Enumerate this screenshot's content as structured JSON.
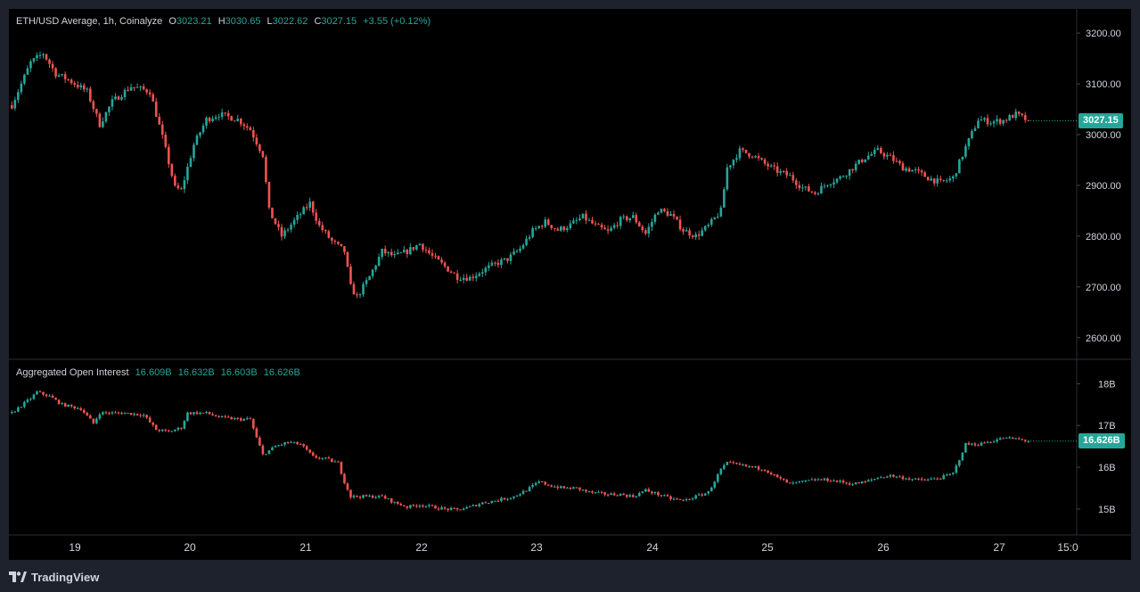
{
  "legend_main": {
    "title": "ETH/USD Average, 1h, Coinalyze",
    "o_label": "O",
    "o": "3023.21",
    "h_label": "H",
    "h": "3030.65",
    "l_label": "L",
    "l": "3022.62",
    "c_label": "C",
    "c": "3027.15",
    "change": "+3.55 (+0.12%)"
  },
  "legend_oi": {
    "title": "Aggregated Open Interest",
    "v1": "16.609B",
    "v2": "16.632B",
    "v3": "16.603B",
    "v4": "16.626B"
  },
  "price_tag": "3027.15",
  "oi_tag": "16.626B",
  "brand": "TradingView",
  "colors": {
    "up": "#26a69a",
    "down": "#ef5350",
    "background": "#000000",
    "frame": "#1e222d"
  },
  "chart_data": [
    {
      "type": "candlestick",
      "name": "ETH/USD Average, 1h, Coinalyze",
      "x_ticks": [
        "19",
        "20",
        "21",
        "22",
        "23",
        "24",
        "25",
        "26",
        "27",
        "15:0"
      ],
      "y_ticks": [
        "3200.00",
        "3100.00",
        "3000.00",
        "2900.00",
        "2800.00",
        "2700.00",
        "2600.00"
      ],
      "ylim": [
        2575,
        3230
      ],
      "last_close": 3027.15,
      "close_path": [
        [
          0,
          3058
        ],
        [
          6,
          3142
        ],
        [
          10,
          3160
        ],
        [
          14,
          3120
        ],
        [
          18,
          3108
        ],
        [
          24,
          3085
        ],
        [
          28,
          3020
        ],
        [
          32,
          3065
        ],
        [
          38,
          3095
        ],
        [
          44,
          3085
        ],
        [
          48,
          2995
        ],
        [
          52,
          2895
        ],
        [
          54,
          2890
        ],
        [
          58,
          2980
        ],
        [
          62,
          3030
        ],
        [
          66,
          3040
        ],
        [
          72,
          3030
        ],
        [
          76,
          3010
        ],
        [
          80,
          2960
        ],
        [
          82,
          2850
        ],
        [
          86,
          2800
        ],
        [
          90,
          2830
        ],
        [
          95,
          2865
        ],
        [
          98,
          2820
        ],
        [
          102,
          2790
        ],
        [
          106,
          2770
        ],
        [
          108,
          2700
        ],
        [
          110,
          2680
        ],
        [
          114,
          2720
        ],
        [
          118,
          2770
        ],
        [
          122,
          2760
        ],
        [
          126,
          2770
        ],
        [
          130,
          2785
        ],
        [
          134,
          2760
        ],
        [
          138,
          2740
        ],
        [
          142,
          2720
        ],
        [
          146,
          2718
        ],
        [
          150,
          2732
        ],
        [
          154,
          2745
        ],
        [
          158,
          2755
        ],
        [
          162,
          2775
        ],
        [
          166,
          2810
        ],
        [
          170,
          2828
        ],
        [
          174,
          2812
        ],
        [
          178,
          2822
        ],
        [
          182,
          2838
        ],
        [
          186,
          2820
        ],
        [
          190,
          2808
        ],
        [
          194,
          2832
        ],
        [
          198,
          2838
        ],
        [
          202,
          2805
        ],
        [
          206,
          2852
        ],
        [
          210,
          2842
        ],
        [
          214,
          2812
        ],
        [
          218,
          2800
        ],
        [
          222,
          2820
        ],
        [
          226,
          2850
        ],
        [
          228,
          2935
        ],
        [
          232,
          2968
        ],
        [
          236,
          2960
        ],
        [
          240,
          2942
        ],
        [
          244,
          2928
        ],
        [
          248,
          2918
        ],
        [
          252,
          2895
        ],
        [
          256,
          2885
        ],
        [
          260,
          2905
        ],
        [
          264,
          2915
        ],
        [
          268,
          2935
        ],
        [
          272,
          2955
        ],
        [
          276,
          2968
        ],
        [
          280,
          2955
        ],
        [
          284,
          2935
        ],
        [
          288,
          2928
        ],
        [
          292,
          2915
        ],
        [
          296,
          2905
        ],
        [
          300,
          2915
        ],
        [
          304,
          2975
        ],
        [
          308,
          3030
        ],
        [
          312,
          3025
        ],
        [
          316,
          3028
        ],
        [
          320,
          3040
        ],
        [
          324,
          3027.15
        ]
      ]
    },
    {
      "type": "candlestick",
      "name": "Aggregated Open Interest",
      "y_ticks": [
        "18B",
        "17B",
        "16B",
        "15B"
      ],
      "ylim": [
        14.55,
        18.35
      ],
      "last_close": 16.626,
      "close_path": [
        [
          0,
          17.3
        ],
        [
          6,
          17.65
        ],
        [
          8,
          17.8
        ],
        [
          12,
          17.7
        ],
        [
          16,
          17.5
        ],
        [
          22,
          17.4
        ],
        [
          26,
          17.05
        ],
        [
          28,
          17.3
        ],
        [
          36,
          17.3
        ],
        [
          42,
          17.25
        ],
        [
          46,
          16.9
        ],
        [
          50,
          16.85
        ],
        [
          54,
          16.95
        ],
        [
          56,
          17.3
        ],
        [
          62,
          17.3
        ],
        [
          66,
          17.2
        ],
        [
          72,
          17.15
        ],
        [
          76,
          17.15
        ],
        [
          78,
          16.7
        ],
        [
          80,
          16.3
        ],
        [
          84,
          16.5
        ],
        [
          88,
          16.6
        ],
        [
          92,
          16.55
        ],
        [
          96,
          16.25
        ],
        [
          100,
          16.2
        ],
        [
          104,
          16.1
        ],
        [
          106,
          15.65
        ],
        [
          108,
          15.3
        ],
        [
          112,
          15.3
        ],
        [
          118,
          15.3
        ],
        [
          122,
          15.15
        ],
        [
          126,
          15.05
        ],
        [
          130,
          15.1
        ],
        [
          134,
          15.05
        ],
        [
          138,
          15.0
        ],
        [
          142,
          14.98
        ],
        [
          146,
          15.05
        ],
        [
          150,
          15.15
        ],
        [
          154,
          15.2
        ],
        [
          160,
          15.3
        ],
        [
          164,
          15.45
        ],
        [
          168,
          15.65
        ],
        [
          172,
          15.55
        ],
        [
          176,
          15.5
        ],
        [
          180,
          15.5
        ],
        [
          184,
          15.4
        ],
        [
          190,
          15.35
        ],
        [
          194,
          15.35
        ],
        [
          198,
          15.3
        ],
        [
          202,
          15.45
        ],
        [
          206,
          15.35
        ],
        [
          210,
          15.25
        ],
        [
          214,
          15.2
        ],
        [
          218,
          15.3
        ],
        [
          222,
          15.4
        ],
        [
          226,
          15.95
        ],
        [
          228,
          16.1
        ],
        [
          232,
          16.05
        ],
        [
          236,
          16.0
        ],
        [
          240,
          15.95
        ],
        [
          244,
          15.75
        ],
        [
          248,
          15.6
        ],
        [
          252,
          15.65
        ],
        [
          256,
          15.7
        ],
        [
          260,
          15.7
        ],
        [
          264,
          15.65
        ],
        [
          268,
          15.6
        ],
        [
          272,
          15.65
        ],
        [
          276,
          15.75
        ],
        [
          280,
          15.8
        ],
        [
          284,
          15.75
        ],
        [
          288,
          15.7
        ],
        [
          292,
          15.7
        ],
        [
          296,
          15.75
        ],
        [
          300,
          15.85
        ],
        [
          304,
          16.55
        ],
        [
          308,
          16.55
        ],
        [
          312,
          16.62
        ],
        [
          316,
          16.7
        ],
        [
          320,
          16.68
        ],
        [
          324,
          16.626
        ]
      ]
    }
  ]
}
